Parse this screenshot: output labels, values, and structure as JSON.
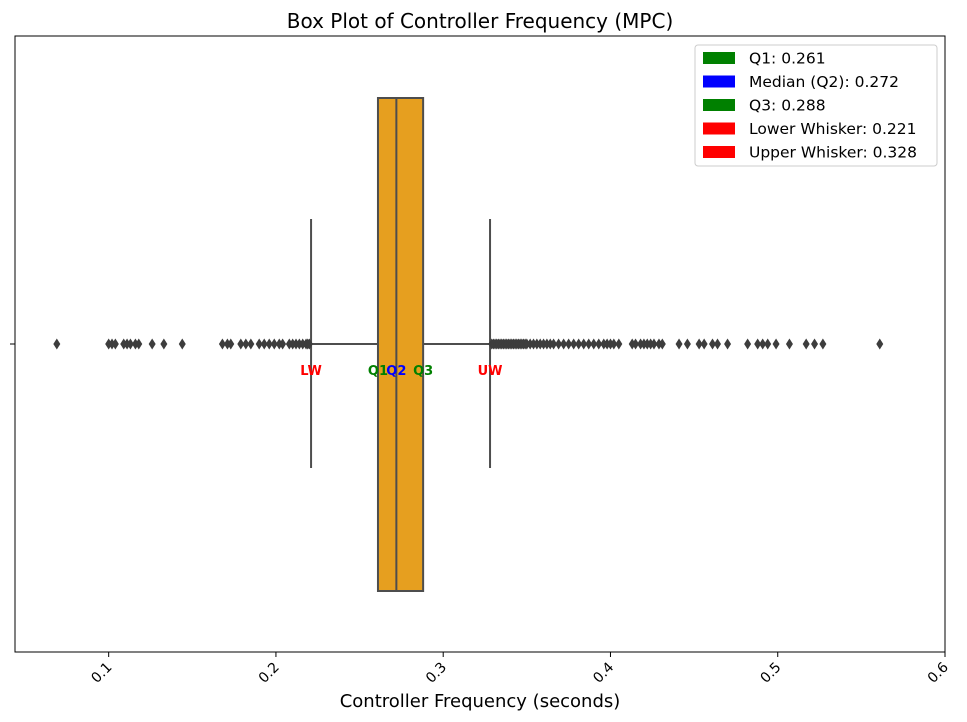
{
  "chart_data": {
    "type": "box",
    "title": "Box Plot of Controller Frequency (MPC)",
    "xlabel": "Controller Frequency (seconds)",
    "ylabel": "",
    "xlim": [
      0.044,
      0.6
    ],
    "xticks": [
      "0.1",
      "0.2",
      "0.3",
      "0.4",
      "0.5",
      "0.6"
    ],
    "yticks": [
      ""
    ],
    "grid": false,
    "legend_position": "top-right",
    "box": {
      "q1": 0.261,
      "median": 0.272,
      "q3": 0.288,
      "lower_whisker": 0.221,
      "upper_whisker": 0.328,
      "fill_color": "#e69f1f",
      "line_color": "#4d4d4d"
    },
    "outliers": [
      0.069,
      0.1,
      0.102,
      0.104,
      0.109,
      0.111,
      0.113,
      0.116,
      0.118,
      0.126,
      0.133,
      0.144,
      0.168,
      0.171,
      0.173,
      0.179,
      0.182,
      0.185,
      0.19,
      0.193,
      0.196,
      0.199,
      0.202,
      0.204,
      0.208,
      0.21,
      0.212,
      0.214,
      0.216,
      0.218,
      0.219,
      0.22,
      0.329,
      0.33,
      0.331,
      0.332,
      0.333,
      0.334,
      0.335,
      0.336,
      0.337,
      0.338,
      0.339,
      0.34,
      0.341,
      0.342,
      0.343,
      0.344,
      0.345,
      0.346,
      0.347,
      0.348,
      0.349,
      0.35,
      0.352,
      0.354,
      0.356,
      0.358,
      0.36,
      0.362,
      0.364,
      0.366,
      0.369,
      0.372,
      0.375,
      0.378,
      0.381,
      0.384,
      0.387,
      0.39,
      0.393,
      0.396,
      0.398,
      0.4,
      0.402,
      0.405,
      0.413,
      0.415,
      0.418,
      0.42,
      0.422,
      0.424,
      0.426,
      0.429,
      0.431,
      0.441,
      0.446,
      0.453,
      0.456,
      0.461,
      0.464,
      0.47,
      0.482,
      0.488,
      0.491,
      0.494,
      0.499,
      0.507,
      0.517,
      0.522,
      0.527,
      0.561
    ],
    "marker_labels": [
      {
        "text": "LW",
        "value": 0.221,
        "color": "#ff0000"
      },
      {
        "text": "Q1",
        "value": 0.261,
        "color": "#008000"
      },
      {
        "text": "Q2",
        "value": 0.272,
        "color": "#0000ff"
      },
      {
        "text": "Q3",
        "value": 0.288,
        "color": "#008000"
      },
      {
        "text": "UW",
        "value": 0.328,
        "color": "#ff0000"
      }
    ],
    "legend": [
      {
        "label": "Q1: 0.261",
        "color": "#008000"
      },
      {
        "label": "Median (Q2): 0.272",
        "color": "#0000ff"
      },
      {
        "label": "Q3: 0.288",
        "color": "#008000"
      },
      {
        "label": "Lower Whisker: 0.221",
        "color": "#ff0000"
      },
      {
        "label": "Upper Whisker: 0.328",
        "color": "#ff0000"
      }
    ]
  }
}
